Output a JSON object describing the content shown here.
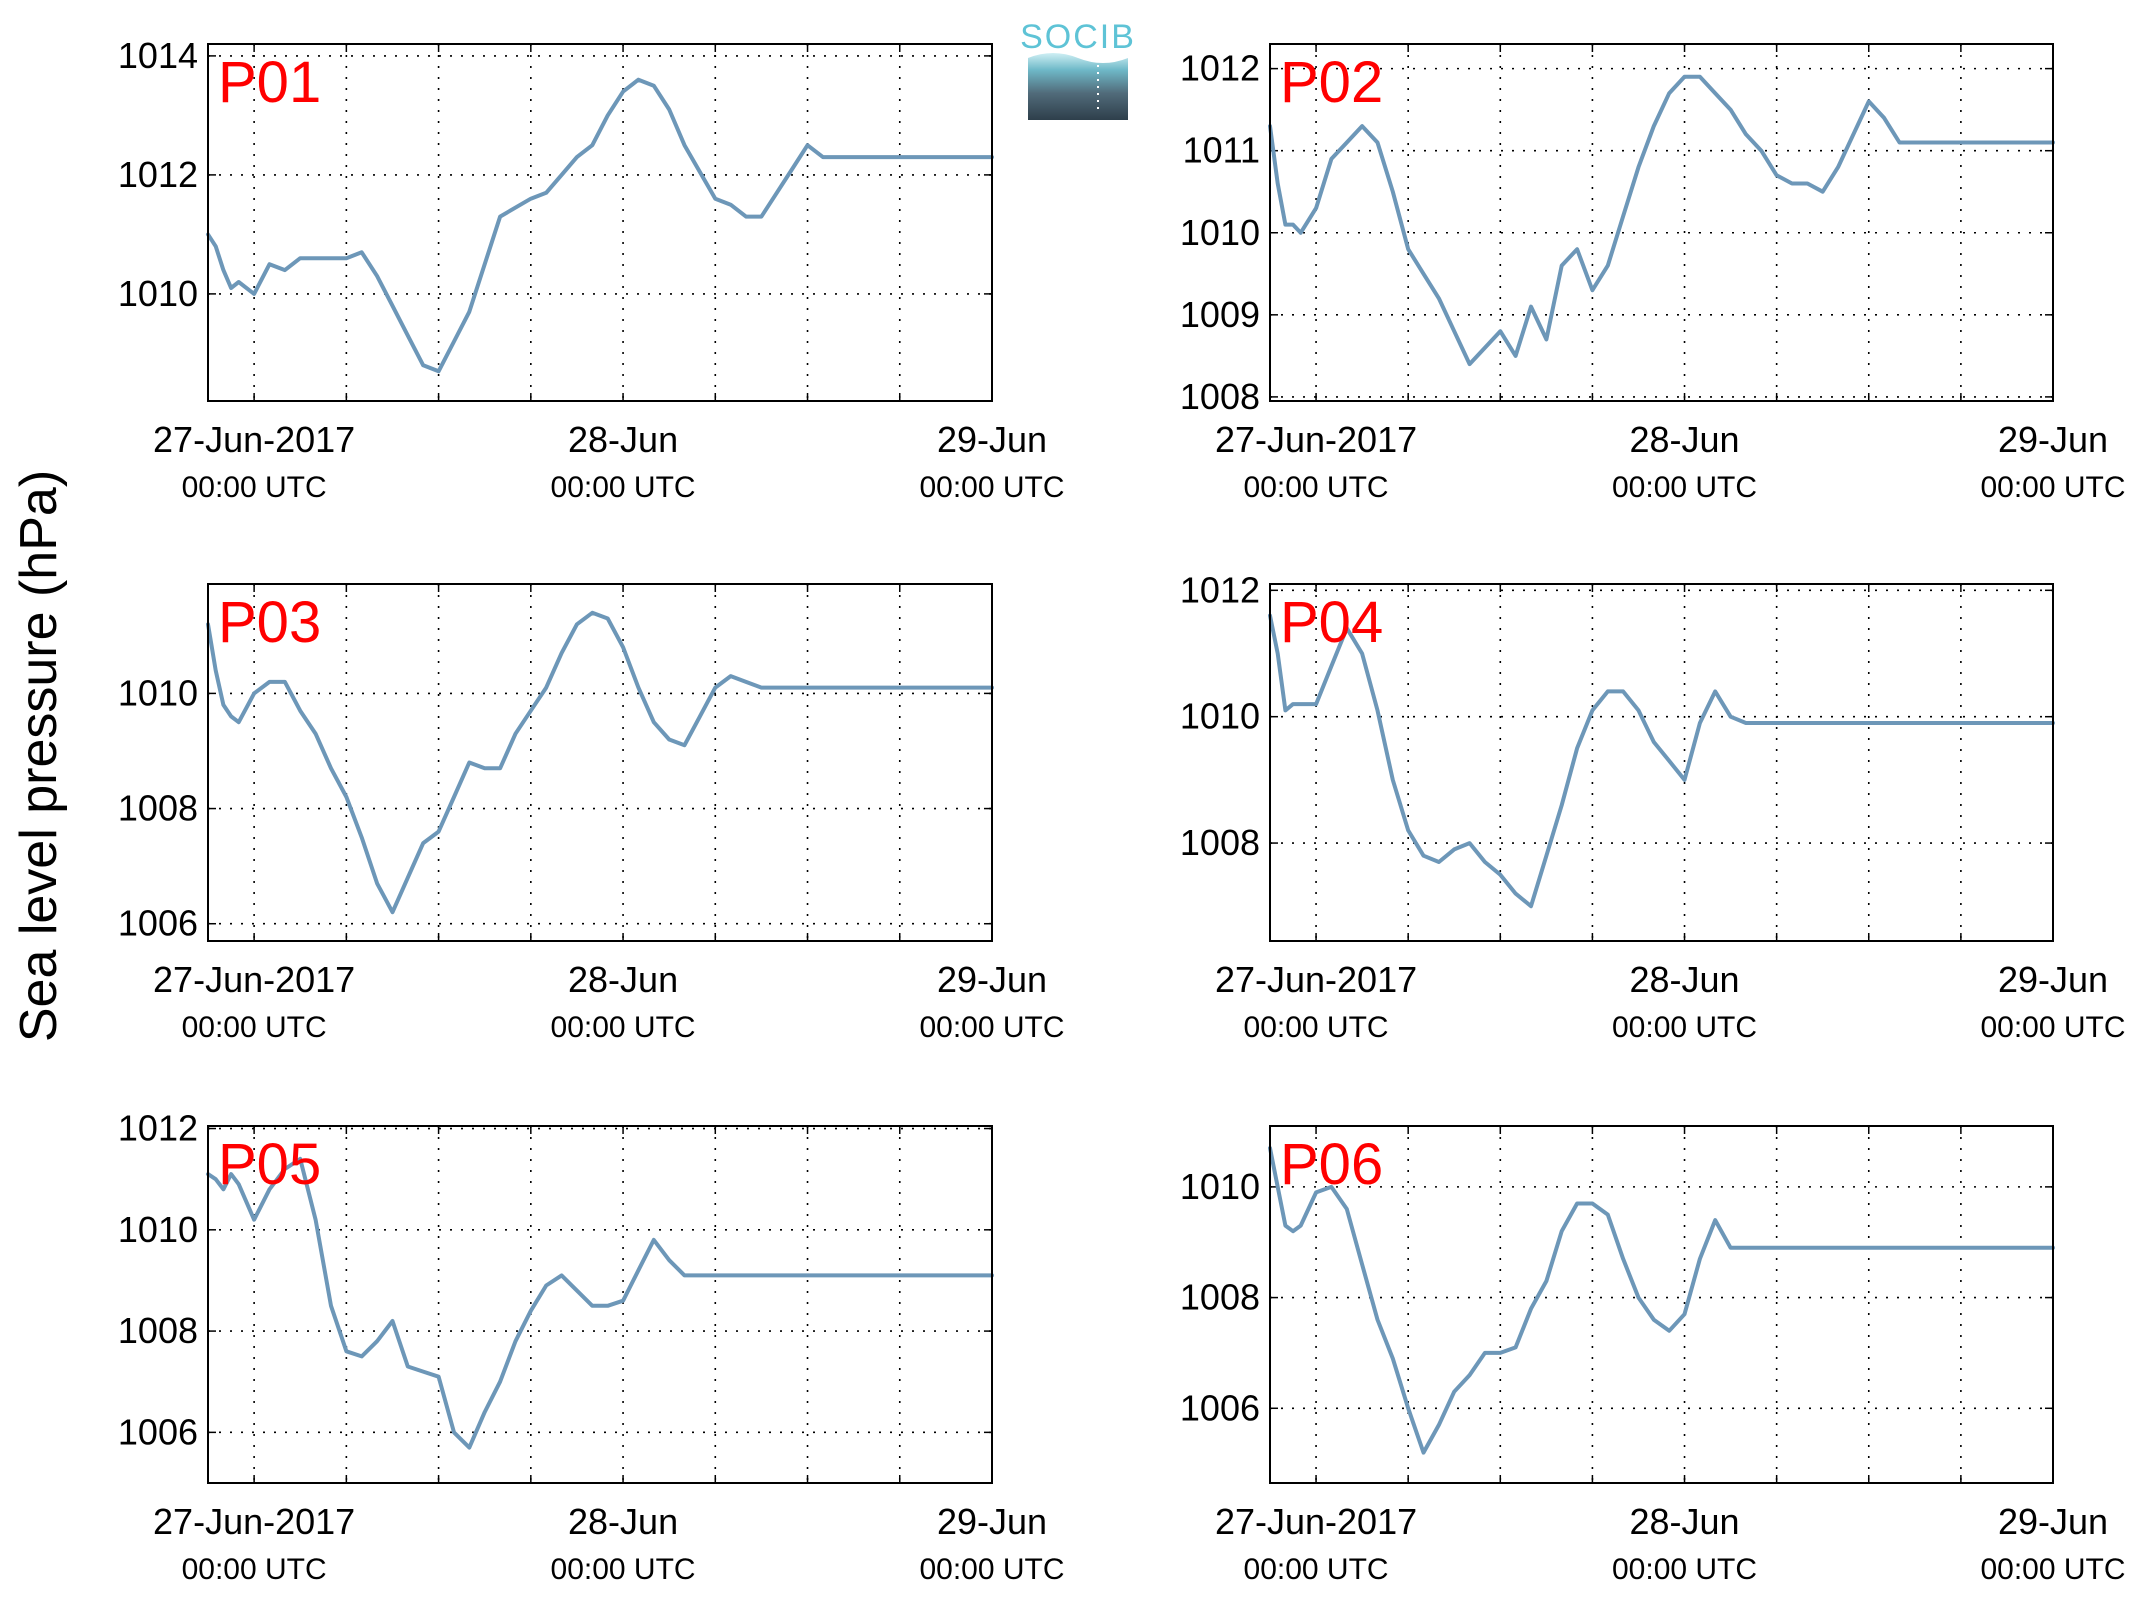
{
  "figure": {
    "ylabel": "Sea level pressure (hPa)",
    "line_color": "#6d97b8",
    "label_color": "#ff0000",
    "grid": true
  },
  "logo": {
    "text": "SOCIB",
    "text_color": "#5ec3d6"
  },
  "chart_data": [
    {
      "type": "line",
      "label": "P01",
      "x_unit": "hours since 27-Jun-2017 00:00 UTC",
      "xlim": [
        -3,
        48
      ],
      "ylim": [
        1008.2,
        1014.2
      ],
      "yticks": [
        1010,
        1012,
        1014
      ],
      "xticks": [
        {
          "x": 0,
          "line1": "27-Jun-2017",
          "line2": "00:00 UTC"
        },
        {
          "x": 24,
          "line1": "28-Jun",
          "line2": "00:00 UTC"
        },
        {
          "x": 48,
          "line1": "29-Jun",
          "line2": "00:00 UTC"
        }
      ],
      "series": [
        {
          "x": [
            -3,
            -2.5,
            -2,
            -1.5,
            -1,
            0,
            1,
            2,
            3,
            5,
            6,
            7,
            8,
            9,
            10,
            11,
            12,
            13,
            14,
            16,
            18,
            19,
            20,
            21,
            22,
            23,
            24,
            25,
            26,
            27,
            28,
            30,
            31,
            32,
            33,
            34,
            35,
            36,
            37,
            38,
            39,
            40,
            41,
            42,
            43,
            44,
            45,
            46,
            47,
            48
          ],
          "y": [
            1011.0,
            1010.8,
            1010.4,
            1010.1,
            1010.2,
            1010.0,
            1010.5,
            1010.4,
            1010.6,
            1010.6,
            1010.6,
            1010.7,
            1010.3,
            1009.8,
            1009.3,
            1008.8,
            1008.7,
            1009.2,
            1009.7,
            1011.3,
            1011.6,
            1011.7,
            1012.0,
            1012.3,
            1012.5,
            1013.0,
            1013.4,
            1013.6,
            1013.5,
            1013.1,
            1012.5,
            1011.6,
            1011.5,
            1011.3,
            1011.3,
            1011.7,
            1012.1,
            1012.5,
            1012.3,
            1012.3,
            1012.3,
            1012.3,
            1012.3,
            1012.3,
            1012.3,
            1012.3,
            1012.3,
            1012.3,
            1012.3,
            1012.3
          ]
        }
      ]
    },
    {
      "type": "line",
      "label": "P02",
      "x_unit": "hours since 27-Jun-2017 00:00 UTC",
      "xlim": [
        -3,
        48
      ],
      "ylim": [
        1007.95,
        1012.3
      ],
      "yticks": [
        1008,
        1009,
        1010,
        1011,
        1012
      ],
      "xticks": [
        {
          "x": 0,
          "line1": "27-Jun-2017",
          "line2": "00:00 UTC"
        },
        {
          "x": 24,
          "line1": "28-Jun",
          "line2": "00:00 UTC"
        },
        {
          "x": 48,
          "line1": "29-Jun",
          "line2": "00:00 UTC"
        }
      ],
      "series": [
        {
          "x": [
            -3,
            -2.5,
            -2,
            -1.5,
            -1,
            0,
            1,
            2,
            3,
            4,
            5,
            6,
            7,
            8,
            9,
            10,
            11,
            12,
            13,
            14,
            15,
            16,
            17,
            18,
            19,
            20,
            21,
            22,
            23,
            24,
            25,
            26,
            27,
            28,
            29,
            30,
            31,
            32,
            33,
            34,
            35,
            36,
            37,
            38,
            39,
            40,
            41,
            42,
            43,
            44,
            45,
            46,
            47,
            48
          ],
          "y": [
            1011.3,
            1010.6,
            1010.1,
            1010.1,
            1010.0,
            1010.3,
            1010.9,
            1011.1,
            1011.3,
            1011.1,
            1010.5,
            1009.8,
            1009.5,
            1009.2,
            1008.8,
            1008.4,
            1008.6,
            1008.8,
            1008.5,
            1009.1,
            1008.7,
            1009.6,
            1009.8,
            1009.3,
            1009.6,
            1010.2,
            1010.8,
            1011.3,
            1011.7,
            1011.9,
            1011.9,
            1011.7,
            1011.5,
            1011.2,
            1011.0,
            1010.7,
            1010.6,
            1010.6,
            1010.5,
            1010.8,
            1011.2,
            1011.6,
            1011.4,
            1011.1,
            1011.1,
            1011.1,
            1011.1,
            1011.1,
            1011.1,
            1011.1,
            1011.1,
            1011.1,
            1011.1,
            1011.1
          ]
        }
      ]
    },
    {
      "type": "line",
      "label": "P03",
      "x_unit": "hours since 27-Jun-2017 00:00 UTC",
      "xlim": [
        -3,
        48
      ],
      "ylim": [
        1005.7,
        1011.9
      ],
      "yticks": [
        1006,
        1008,
        1010
      ],
      "xticks": [
        {
          "x": 0,
          "line1": "27-Jun-2017",
          "line2": "00:00 UTC"
        },
        {
          "x": 24,
          "line1": "28-Jun",
          "line2": "00:00 UTC"
        },
        {
          "x": 48,
          "line1": "29-Jun",
          "line2": "00:00 UTC"
        }
      ],
      "series": [
        {
          "x": [
            -3,
            -2.5,
            -2,
            -1.5,
            -1,
            0,
            1,
            2,
            3,
            4,
            5,
            6,
            7,
            8,
            9,
            10,
            11,
            12,
            13,
            14,
            15,
            16,
            17,
            18,
            19,
            20,
            21,
            22,
            23,
            24,
            25,
            26,
            27,
            28,
            29,
            30,
            31,
            32,
            33,
            34,
            35,
            36,
            37,
            38,
            39,
            40,
            41,
            42,
            43,
            44,
            45,
            46,
            47,
            48
          ],
          "y": [
            1011.2,
            1010.4,
            1009.8,
            1009.6,
            1009.5,
            1010.0,
            1010.2,
            1010.2,
            1009.7,
            1009.3,
            1008.7,
            1008.2,
            1007.5,
            1006.7,
            1006.2,
            1006.8,
            1007.4,
            1007.6,
            1008.2,
            1008.8,
            1008.7,
            1008.7,
            1009.3,
            1009.7,
            1010.1,
            1010.7,
            1011.2,
            1011.4,
            1011.3,
            1010.8,
            1010.1,
            1009.5,
            1009.2,
            1009.1,
            1009.6,
            1010.1,
            1010.3,
            1010.2,
            1010.1,
            1010.1,
            1010.1,
            1010.1,
            1010.1,
            1010.1,
            1010.1,
            1010.1,
            1010.1,
            1010.1,
            1010.1,
            1010.1,
            1010.1,
            1010.1,
            1010.1,
            1010.1
          ]
        }
      ]
    },
    {
      "type": "line",
      "label": "P04",
      "x_unit": "hours since 27-Jun-2017 00:00 UTC",
      "xlim": [
        -3,
        48
      ],
      "ylim": [
        1006.45,
        1012.1
      ],
      "yticks": [
        1008,
        1010,
        1012
      ],
      "xticks": [
        {
          "x": 0,
          "line1": "27-Jun-2017",
          "line2": "00:00 UTC"
        },
        {
          "x": 24,
          "line1": "28-Jun",
          "line2": "00:00 UTC"
        },
        {
          "x": 48,
          "line1": "29-Jun",
          "line2": "00:00 UTC"
        }
      ],
      "series": [
        {
          "x": [
            -3,
            -2.5,
            -2,
            -1.5,
            -1,
            0,
            1,
            2,
            3,
            4,
            5,
            6,
            7,
            8,
            9,
            10,
            11,
            12,
            13,
            14,
            15,
            16,
            17,
            18,
            19,
            20,
            21,
            22,
            23,
            24,
            25,
            26,
            27,
            28,
            29,
            30,
            31,
            32,
            33,
            34,
            35,
            36,
            37,
            38,
            39,
            40,
            41,
            42,
            43,
            44,
            45,
            46,
            47,
            48
          ],
          "y": [
            1011.6,
            1011.0,
            1010.1,
            1010.2,
            1010.2,
            1010.2,
            1010.8,
            1011.4,
            1011.0,
            1010.1,
            1009.0,
            1008.2,
            1007.8,
            1007.7,
            1007.9,
            1008.0,
            1007.7,
            1007.5,
            1007.2,
            1007.0,
            1007.8,
            1008.6,
            1009.5,
            1010.1,
            1010.4,
            1010.4,
            1010.1,
            1009.6,
            1009.3,
            1009.0,
            1009.9,
            1010.4,
            1010.0,
            1009.9,
            1009.9,
            1009.9,
            1009.9,
            1009.9,
            1009.9,
            1009.9,
            1009.9,
            1009.9,
            1009.9,
            1009.9,
            1009.9,
            1009.9,
            1009.9,
            1009.9,
            1009.9,
            1009.9,
            1009.9,
            1009.9,
            1009.9,
            1009.9
          ]
        }
      ]
    },
    {
      "type": "line",
      "label": "P05",
      "x_unit": "hours since 27-Jun-2017 00:00 UTC",
      "xlim": [
        -3,
        48
      ],
      "ylim": [
        1005.0,
        1012.05
      ],
      "yticks": [
        1006,
        1008,
        1010,
        1012
      ],
      "xticks": [
        {
          "x": 0,
          "line1": "27-Jun-2017",
          "line2": "00:00 UTC"
        },
        {
          "x": 24,
          "line1": "28-Jun",
          "line2": "00:00 UTC"
        },
        {
          "x": 48,
          "line1": "29-Jun",
          "line2": "00:00 UTC"
        }
      ],
      "series": [
        {
          "x": [
            -3,
            -2.5,
            -2,
            -1.5,
            -1,
            0,
            1,
            2,
            3,
            4,
            5,
            6,
            7,
            8,
            9,
            10,
            11,
            12,
            13,
            14,
            15,
            16,
            17,
            18,
            19,
            20,
            21,
            22,
            23,
            24,
            25,
            26,
            27,
            28,
            29,
            30,
            31,
            32,
            33,
            34,
            35,
            36,
            37,
            38,
            39,
            40,
            41,
            42,
            43,
            44,
            45,
            46,
            47,
            48
          ],
          "y": [
            1011.1,
            1011.0,
            1010.8,
            1011.1,
            1010.9,
            1010.2,
            1010.8,
            1011.2,
            1011.4,
            1010.2,
            1008.5,
            1007.6,
            1007.5,
            1007.8,
            1008.2,
            1007.3,
            1007.2,
            1007.1,
            1006.0,
            1005.7,
            1006.4,
            1007.0,
            1007.8,
            1008.4,
            1008.9,
            1009.1,
            1008.8,
            1008.5,
            1008.5,
            1008.6,
            1009.2,
            1009.8,
            1009.4,
            1009.1,
            1009.1,
            1009.1,
            1009.1,
            1009.1,
            1009.1,
            1009.1,
            1009.1,
            1009.1,
            1009.1,
            1009.1,
            1009.1,
            1009.1,
            1009.1,
            1009.1,
            1009.1,
            1009.1,
            1009.1,
            1009.1,
            1009.1,
            1009.1
          ]
        }
      ]
    },
    {
      "type": "line",
      "label": "P06",
      "x_unit": "hours since 27-Jun-2017 00:00 UTC",
      "xlim": [
        -3,
        48
      ],
      "ylim": [
        1004.65,
        1011.1
      ],
      "yticks": [
        1006,
        1008,
        1010
      ],
      "xticks": [
        {
          "x": 0,
          "line1": "27-Jun-2017",
          "line2": "00:00 UTC"
        },
        {
          "x": 24,
          "line1": "28-Jun",
          "line2": "00:00 UTC"
        },
        {
          "x": 48,
          "line1": "29-Jun",
          "line2": "00:00 UTC"
        }
      ],
      "series": [
        {
          "x": [
            -3,
            -2.5,
            -2,
            -1.5,
            -1,
            0,
            1,
            2,
            3,
            4,
            5,
            6,
            7,
            8,
            9,
            10,
            11,
            12,
            13,
            14,
            15,
            16,
            17,
            18,
            19,
            20,
            21,
            22,
            23,
            24,
            25,
            26,
            27,
            28,
            29,
            30,
            31,
            32,
            33,
            34,
            35,
            36,
            37,
            38,
            39,
            40,
            41,
            42,
            43,
            44,
            45,
            46,
            47,
            48
          ],
          "y": [
            1010.7,
            1010.0,
            1009.3,
            1009.2,
            1009.3,
            1009.9,
            1010.0,
            1009.6,
            1008.6,
            1007.6,
            1006.9,
            1006.0,
            1005.2,
            1005.7,
            1006.3,
            1006.6,
            1007.0,
            1007.0,
            1007.1,
            1007.8,
            1008.3,
            1009.2,
            1009.7,
            1009.7,
            1009.5,
            1008.7,
            1008.0,
            1007.6,
            1007.4,
            1007.7,
            1008.7,
            1009.4,
            1008.9,
            1008.9,
            1008.9,
            1008.9,
            1008.9,
            1008.9,
            1008.9,
            1008.9,
            1008.9,
            1008.9,
            1008.9,
            1008.9,
            1008.9,
            1008.9,
            1008.9,
            1008.9,
            1008.9,
            1008.9,
            1008.9,
            1008.9,
            1008.9,
            1008.9
          ]
        }
      ]
    }
  ]
}
